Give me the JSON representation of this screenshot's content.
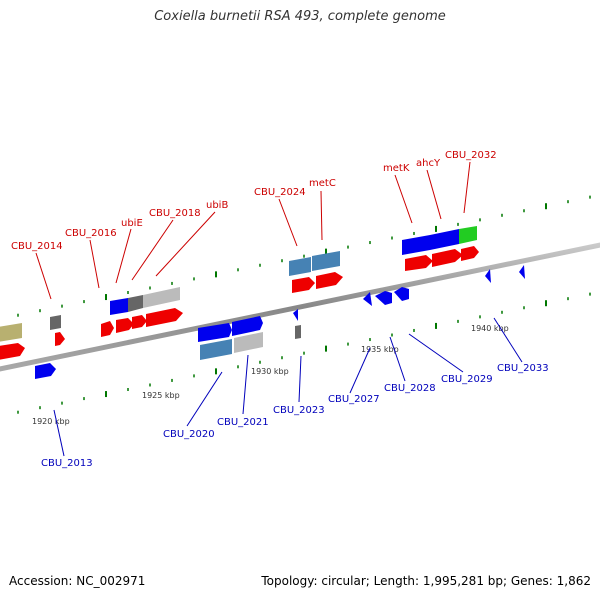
{
  "title": "Coxiella burnetii RSA 493, complete genome",
  "accession_label": "Accession: NC_002971",
  "stats_label": "Topology: circular; Length: 1,995,281 bp; Genes: 1,862",
  "colors": {
    "forward": "#ee0000",
    "reverse": "#0000ee",
    "light_blue": "#4682b4",
    "gray": "#bbbbbb",
    "dark_gray": "#666666",
    "green": "#22cc22",
    "olive": "#b8b070",
    "backbone": "#999999",
    "tick": "#007700",
    "top_label": "#cc0000",
    "bottom_label": "#0000bb"
  },
  "scale_labels": [
    "1920 kbp",
    "1925 kbp",
    "1930 kbp",
    "1935 kbp",
    "1940 kbp"
  ],
  "top_labels": [
    "CBU_2014",
    "CBU_2016",
    "ubiE",
    "CBU_2018",
    "ubiB",
    "CBU_2024",
    "metC",
    "metK",
    "ahcY",
    "CBU_2032"
  ],
  "bottom_labels": [
    "CBU_2013",
    "CBU_2020",
    "CBU_2021",
    "CBU_2023",
    "CBU_2027",
    "CBU_2028",
    "CBU_2029",
    "CBU_2033"
  ]
}
